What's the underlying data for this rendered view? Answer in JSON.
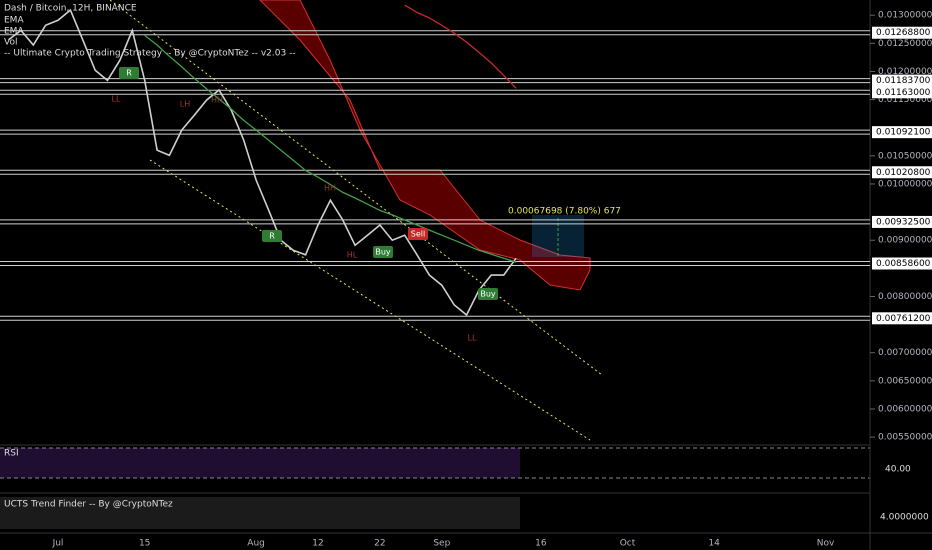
{
  "chart_data": {
    "type": "line",
    "title": "Dash / Bitcoin, 12H, BINANCE",
    "indicators": [
      "Vol",
      "-- Ultimate Crypto Trading Strategy -- By @CryptoNTez -- v2.03 --"
    ],
    "categories": [
      null,
      null,
      null,
      null,
      "Jul",
      null,
      null,
      null,
      null,
      null,
      null,
      "15",
      null,
      null,
      null,
      null,
      null,
      null,
      null,
      null,
      "Aug",
      null,
      null,
      null,
      null,
      "12",
      null,
      null,
      null,
      null,
      "22",
      null,
      null,
      null,
      null,
      "Sep",
      null,
      null,
      null,
      null,
      null,
      null,
      null,
      "16",
      null,
      null,
      null,
      null,
      null,
      null,
      "Oct",
      null,
      null,
      null,
      null,
      null,
      null,
      "14",
      null,
      null,
      null,
      null,
      null,
      null,
      null,
      null,
      "Nov",
      null,
      null
    ],
    "series": [
      {
        "color": "#cfcfcf",
        "values": [
          0.01256,
          0.01273,
          0.01247,
          0.01282,
          0.01291,
          0.01309,
          0.01256,
          0.01202,
          0.01184,
          0.0122,
          0.01273,
          0.01184,
          0.0106,
          0.01051,
          0.01096,
          0.01122,
          0.01149,
          0.01167,
          0.01131,
          0.01078,
          0.01007,
          0.00954,
          0.009,
          0.00882,
          0.00874,
          0.00927,
          0.00971,
          0.00936,
          0.00891,
          0.00909,
          0.00927,
          0.009,
          0.00909,
          0.00874,
          0.00838,
          0.0082,
          0.00785,
          0.00767,
          0.00811,
          0.00838,
          0.00838,
          0.00868,
          null,
          null,
          null,
          null,
          null,
          null,
          null,
          null,
          null,
          null,
          null,
          null,
          null,
          null,
          null,
          null,
          null,
          null,
          null,
          null,
          null,
          null,
          null,
          null,
          null,
          null,
          null
        ]
      },
      {
        "name": "EMA",
        "color": "#43a047",
        "values": [
          null,
          null,
          null,
          null,
          null,
          null,
          null,
          null,
          null,
          null,
          null,
          0.01264,
          0.01247,
          0.01227,
          0.01208,
          0.01188,
          0.01169,
          0.01151,
          0.01133,
          0.01113,
          0.01096,
          0.01078,
          0.0106,
          0.01042,
          0.01024,
          0.01012,
          0.00999,
          0.00985,
          0.00975,
          0.00964,
          0.00953,
          0.00945,
          0.00936,
          0.00927,
          0.00918,
          0.00909,
          0.009,
          0.00891,
          0.00882,
          0.00875,
          0.00868,
          0.00861,
          null,
          null,
          null,
          null,
          null,
          null,
          null,
          null,
          null,
          null,
          null,
          null,
          null,
          null,
          null,
          null,
          null,
          null,
          null,
          null,
          null,
          null,
          null,
          null,
          null,
          null,
          null
        ]
      },
      {
        "name": "EMA",
        "color": "#c62828",
        "values": [
          null,
          null,
          null,
          null,
          null,
          null,
          null,
          null,
          null,
          null,
          null,
          null,
          null,
          null,
          null,
          null,
          null,
          null,
          null,
          null,
          null,
          null,
          null,
          null,
          null,
          null,
          null,
          null,
          null,
          null,
          null,
          null,
          0.01318,
          0.01305,
          0.01295,
          0.01282,
          0.01268,
          0.01252,
          0.01234,
          0.01215,
          0.01193,
          0.0117,
          null,
          null,
          null,
          null,
          null,
          null,
          null,
          null,
          null,
          null,
          null,
          null,
          null,
          null,
          null,
          null,
          null,
          null,
          null,
          null,
          null,
          null,
          null,
          null,
          null,
          null,
          null
        ]
      }
    ],
    "ylim": [
      0.00536,
      0.01327
    ],
    "yticks": [
      {
        "value": 0.013,
        "label": "0.01300000"
      },
      {
        "value": 0.0125,
        "label": "0.01250000"
      },
      {
        "value": 0.012,
        "label": "0.01200000"
      },
      {
        "value": 0.0115,
        "label": "0.01150000"
      },
      {
        "value": 0.0105,
        "label": "0.01050000"
      },
      {
        "value": 0.01,
        "label": "0.01000000"
      },
      {
        "value": 0.009,
        "label": "0.00900000"
      },
      {
        "value": 0.008,
        "label": "0.00800000"
      },
      {
        "value": 0.007,
        "label": "0.00700000"
      },
      {
        "value": 0.0065,
        "label": "0.00650000"
      },
      {
        "value": 0.006,
        "label": "0.00600000"
      },
      {
        "value": 0.0055,
        "label": "0.00550000"
      }
    ],
    "levels": [
      {
        "value": 0.012688,
        "label": "0.01268800"
      },
      {
        "value": 0.011837,
        "label": "0.01183700"
      },
      {
        "value": 0.01163,
        "label": "0.01163000"
      },
      {
        "value": 0.010921,
        "label": "0.01092100"
      },
      {
        "value": 0.010208,
        "label": "0.01020800"
      },
      {
        "value": 0.009325,
        "label": "0.00932500"
      },
      {
        "value": 0.008586,
        "label": "0.00858600"
      },
      {
        "value": 0.007612,
        "label": "0.00761200"
      }
    ],
    "measure": "0.00067698 (7.80%) 677",
    "annotations": [
      "Sell",
      "Buy",
      "Buy",
      "HH",
      "LH",
      "LL",
      "HL",
      "R",
      "R",
      "LL",
      "HH"
    ],
    "grid": false
  },
  "panes": [
    {
      "title": "RSI",
      "tick": "40.00"
    },
    {
      "title": "UCTS Trend Finder -- By @CryptoNTez",
      "tick": "4.0000000"
    }
  ]
}
